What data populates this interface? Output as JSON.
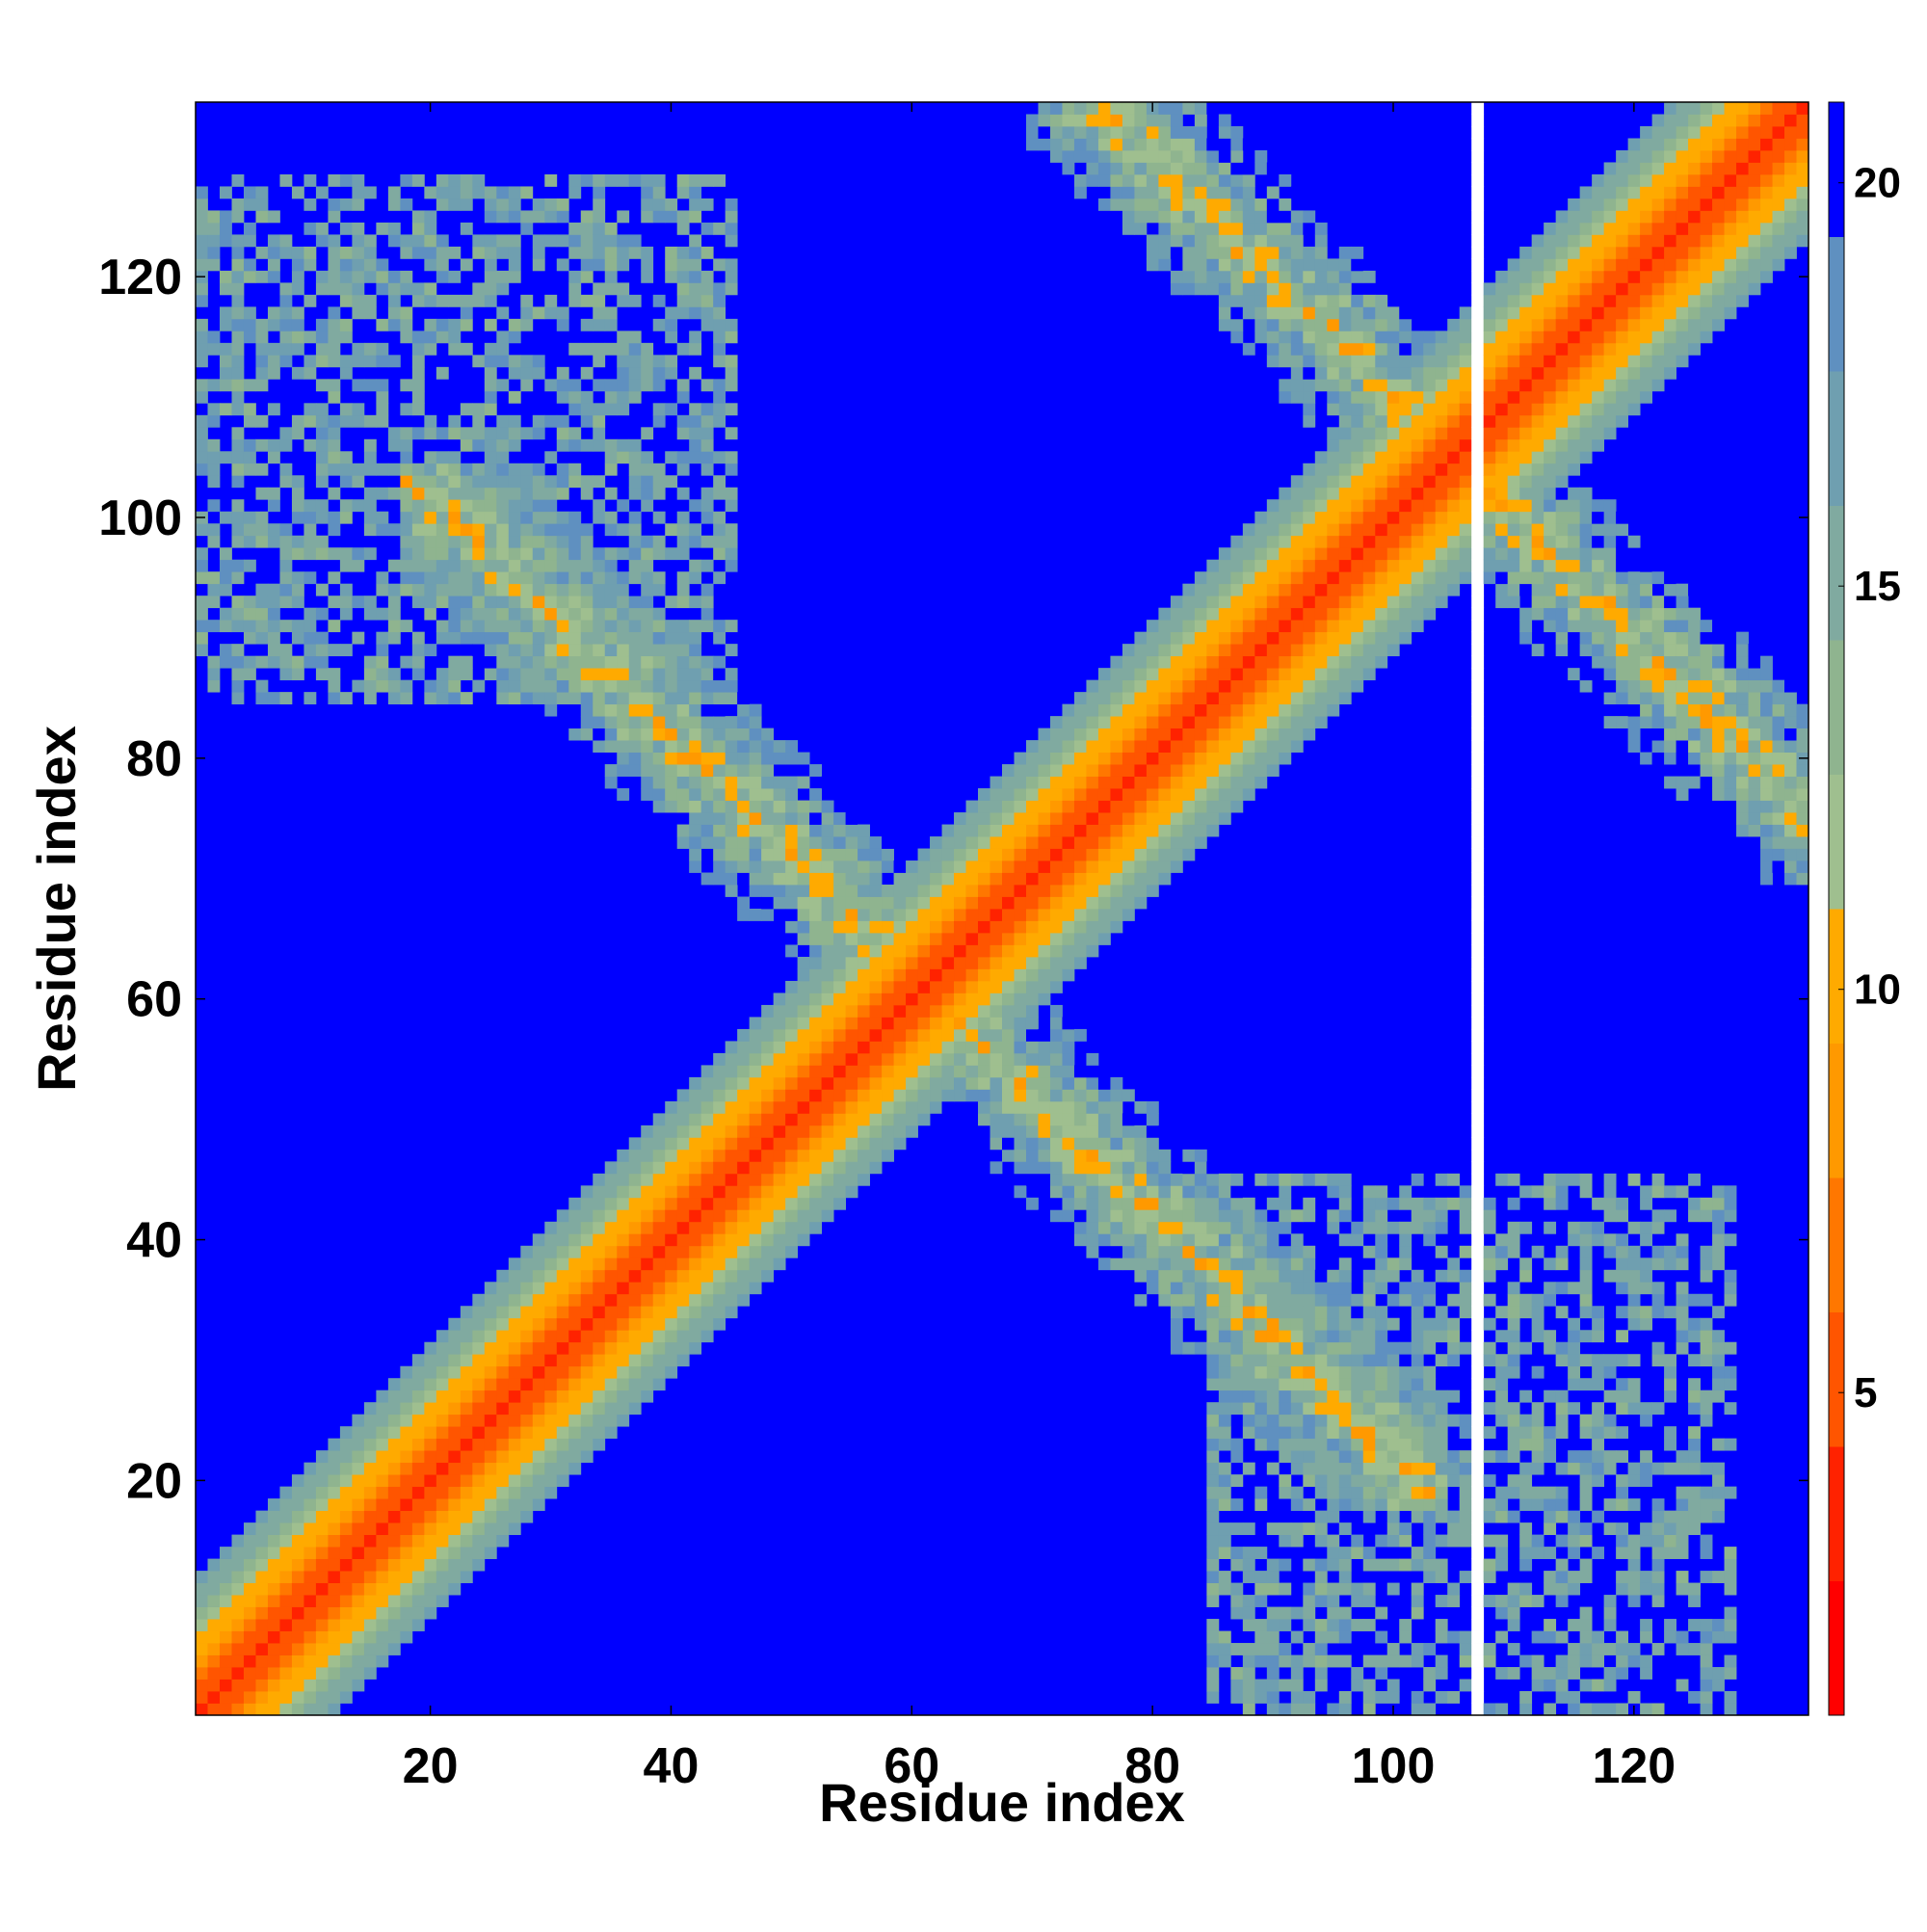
{
  "chart_data": {
    "type": "heatmap",
    "title": "",
    "xlabel": "Residue index",
    "ylabel": "Residue index",
    "n_residues": 134,
    "xlim": [
      1,
      134
    ],
    "ylim": [
      1,
      134
    ],
    "x_ticks": [
      20,
      40,
      60,
      80,
      100,
      120
    ],
    "y_ticks": [
      20,
      40,
      60,
      80,
      100,
      120
    ],
    "colorbar": {
      "min": 1,
      "max": 21,
      "ticks": [
        5,
        10,
        15,
        20
      ],
      "colors": [
        "#ff0000",
        "#ff2200",
        "#ff5500",
        "#ff7700",
        "#ff9900",
        "#ffaa00",
        "#9fbf8f",
        "#8fb48f",
        "#80aaa0",
        "#6f9fb0",
        "#5f90c0",
        "#0000ff"
      ]
    },
    "background_value": 21,
    "features": [
      {
        "kind": "main diagonal band",
        "from_residue": 1,
        "to_residue": 134,
        "center_distance": 3.8
      },
      {
        "kind": "antiparallel contact band",
        "anchor_sum": 122,
        "residues_from": 55,
        "residues_to": 100
      },
      {
        "kind": "antiparallel contact band",
        "anchor_sum": 122,
        "residues_from": 20,
        "residues_to": 45
      },
      {
        "kind": "antiparallel contact band",
        "anchor_sum": 210,
        "residues_from": 70,
        "residues_to": 105
      },
      {
        "kind": "antiparallel contact band",
        "anchor_sum": 210,
        "residues_from": 105,
        "residues_to": 130
      },
      {
        "kind": "scattered contact region",
        "residues_x": [
          1,
          45
        ],
        "residues_y": [
          85,
          130
        ]
      },
      {
        "kind": "scattered contact region",
        "residues_x": [
          85,
          130
        ],
        "residues_y": [
          1,
          45
        ]
      },
      {
        "kind": "blank column",
        "x": 107
      }
    ]
  }
}
